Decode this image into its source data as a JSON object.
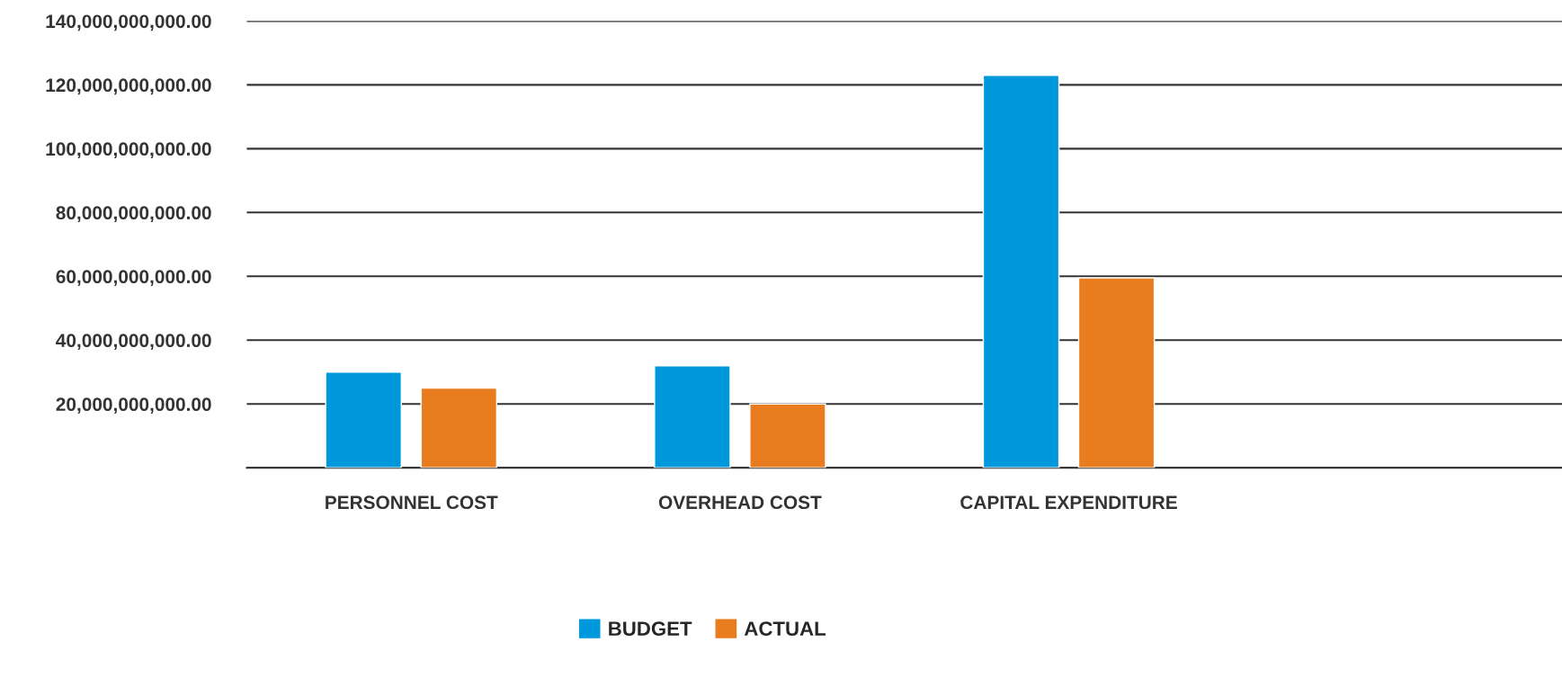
{
  "chart_data": {
    "type": "bar",
    "categories": [
      "PERSONNEL COST",
      "OVERHEAD COST",
      "CAPITAL EXPENDITURE",
      null
    ],
    "series": [
      {
        "name": "BUDGET",
        "color": "#0098dc",
        "values": [
          30000000000,
          32000000000,
          123000000000,
          null
        ]
      },
      {
        "name": "ACTUAL",
        "color": "#e87c1e",
        "values": [
          25000000000,
          20000000000,
          59500000000,
          null
        ]
      }
    ],
    "ylim": [
      0,
      140000000000
    ],
    "yticks": [
      {
        "value": 0,
        "label": null
      },
      {
        "value": 20000000000,
        "label": "20,000,000,000.00"
      },
      {
        "value": 40000000000,
        "label": "40,000,000,000.00"
      },
      {
        "value": 60000000000,
        "label": "60,000,000,000.00"
      },
      {
        "value": 80000000000,
        "label": "80,000,000,000.00"
      },
      {
        "value": 100000000000,
        "label": "100,000,000,000.00"
      },
      {
        "value": 120000000000,
        "label": "120,000,000,000.00"
      },
      {
        "value": 140000000000,
        "label": "140,000,000,000.00"
      }
    ],
    "grid": "y",
    "legend": "bottom"
  }
}
